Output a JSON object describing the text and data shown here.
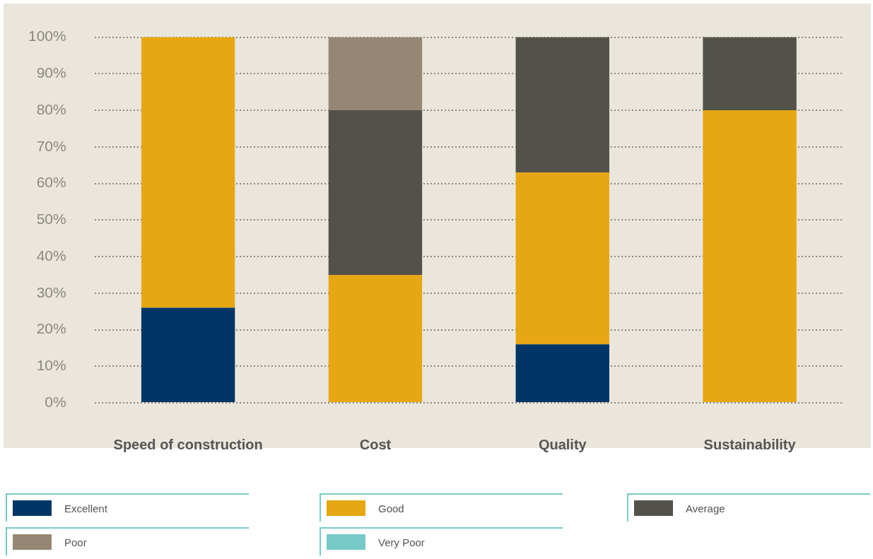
{
  "chart_data": {
    "type": "bar",
    "stacked": true,
    "categories": [
      "Speed of construction",
      "Cost",
      "Quality",
      "Sustainability"
    ],
    "series": [
      {
        "name": "Excellent",
        "color": "#003565",
        "values": [
          26,
          0,
          16,
          0
        ]
      },
      {
        "name": "Good",
        "color": "#e6a713",
        "values": [
          74,
          35,
          47,
          80
        ]
      },
      {
        "name": "Average",
        "color": "#52524a",
        "values": [
          0,
          45,
          37,
          20
        ]
      },
      {
        "name": "Poor",
        "color": "#968774",
        "values": [
          0,
          20,
          0,
          0
        ]
      },
      {
        "name": "Very Poor",
        "color": "#76cbc8",
        "values": [
          0,
          0,
          0,
          0
        ]
      }
    ],
    "ylim": [
      0,
      100
    ],
    "yticks": [
      {
        "value": 0,
        "label": "0%"
      },
      {
        "value": 10,
        "label": "10%"
      },
      {
        "value": 20,
        "label": "20%"
      },
      {
        "value": 30,
        "label": "30%"
      },
      {
        "value": 40,
        "label": "40%"
      },
      {
        "value": 50,
        "label": "50%"
      },
      {
        "value": 60,
        "label": "60%"
      },
      {
        "value": 70,
        "label": "70%"
      },
      {
        "value": 80,
        "label": "80%"
      },
      {
        "value": 90,
        "label": "90%"
      },
      {
        "value": 100,
        "label": "100%"
      }
    ],
    "grid": "y",
    "legend": "bottom"
  }
}
